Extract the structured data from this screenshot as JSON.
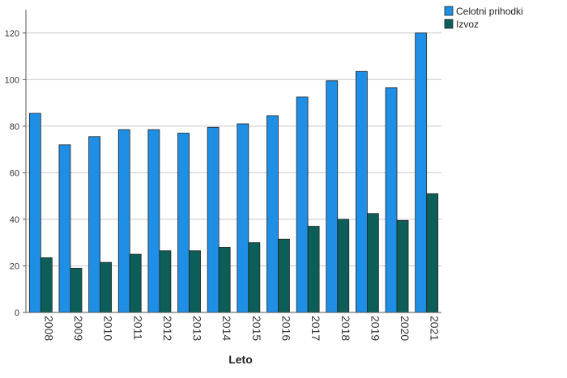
{
  "chart_data": {
    "type": "bar",
    "xlabel": "Leto",
    "ylabel": "",
    "ylim": [
      0,
      130
    ],
    "yticks": [
      0,
      20,
      40,
      60,
      80,
      100,
      120
    ],
    "grid": true,
    "legend_position": "top-right",
    "categories": [
      "2008",
      "2009",
      "2010",
      "2011",
      "2012",
      "2013",
      "2014",
      "2015",
      "2016",
      "2017",
      "2018",
      "2019",
      "2020",
      "2021"
    ],
    "series": [
      {
        "name": "Celotni prihodki",
        "color": "#1f8fe5",
        "values": [
          85.5,
          72,
          75.5,
          78.5,
          78.5,
          77,
          79.5,
          81,
          84.5,
          92.5,
          99.5,
          103.5,
          96.5,
          120
        ]
      },
      {
        "name": "Izvoz",
        "color": "#0d5e58",
        "values": [
          23.5,
          19,
          21.5,
          25,
          26.5,
          26.5,
          28,
          30,
          31.5,
          37,
          40,
          42.5,
          39.5,
          51
        ]
      }
    ]
  }
}
